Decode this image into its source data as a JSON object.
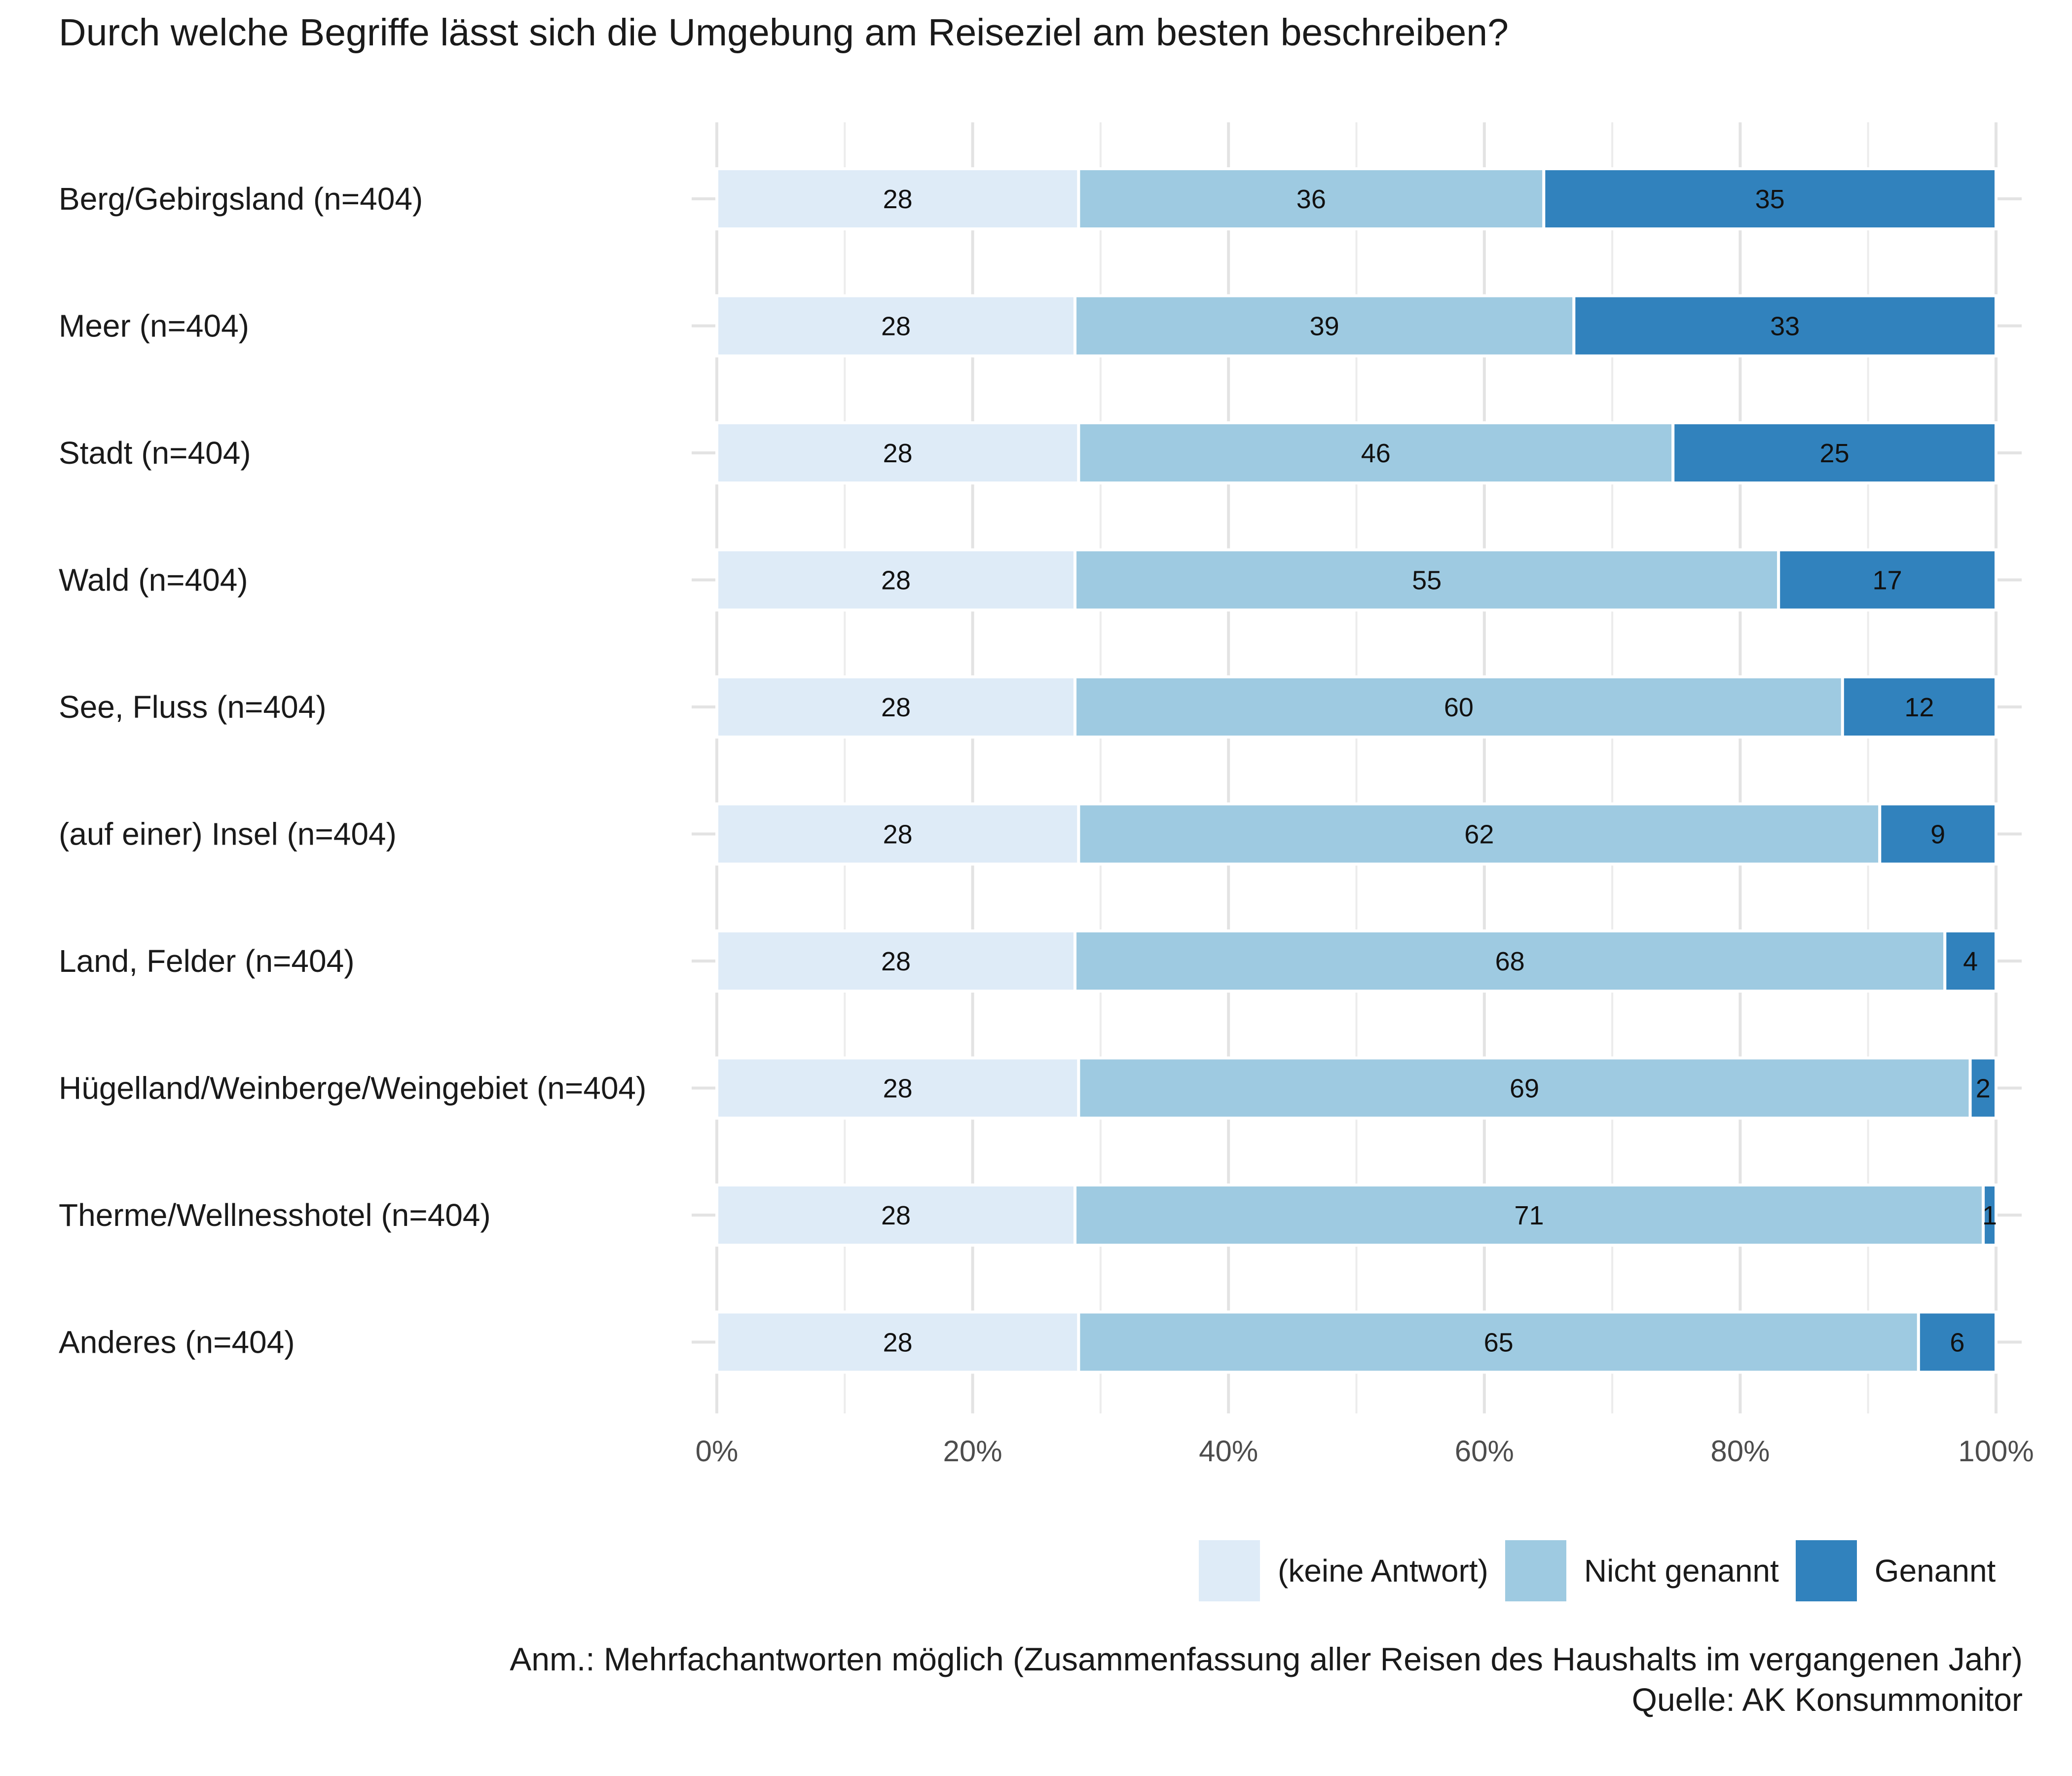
{
  "chart_data": {
    "type": "bar",
    "orientation": "horizontal",
    "stacked": true,
    "title": "Durch welche Begriffe lässt sich die Umgebung am Reiseziel am besten beschreiben?",
    "categories": [
      "Berg/Gebirgsland (n=404)",
      "Meer (n=404)",
      "Stadt (n=404)",
      "Wald (n=404)",
      "See, Fluss (n=404)",
      "(auf einer) Insel (n=404)",
      "Land, Felder (n=404)",
      "Hügelland/Weinberge/Weingebiet (n=404)",
      "Therme/Wellnesshotel (n=404)",
      "Anderes (n=404)"
    ],
    "series": [
      {
        "name": "(keine Antwort)",
        "color": "#deebf7",
        "values": [
          28,
          28,
          28,
          28,
          28,
          28,
          28,
          28,
          28,
          28
        ]
      },
      {
        "name": "Nicht genannt",
        "color": "#9ecae1",
        "values": [
          36,
          39,
          46,
          55,
          60,
          62,
          68,
          69,
          71,
          65
        ]
      },
      {
        "name": "Genannt",
        "color": "#3182bd",
        "values": [
          35,
          33,
          25,
          17,
          12,
          9,
          4,
          2,
          1,
          6
        ]
      }
    ],
    "xlim": [
      0,
      100
    ],
    "x_ticks": [
      "0%",
      "20%",
      "40%",
      "60%",
      "80%",
      "100%"
    ],
    "grid": true,
    "legend_position": "bottom-right"
  },
  "note": "Anm.: Mehrfachantworten möglich (Zusammenfassung aller Reisen des Haushalts im vergangenen Jahr)",
  "source": "Quelle: AK Konsummonitor"
}
